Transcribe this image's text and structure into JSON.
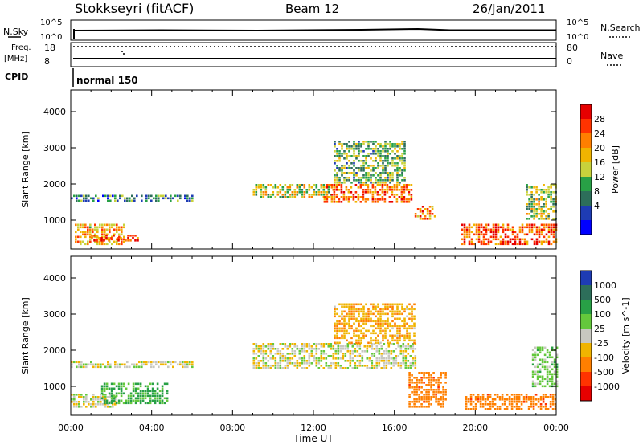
{
  "header": {
    "station": "Stokkseyri (fitACF)",
    "beam": "Beam 12",
    "date": "26/Jan/2011"
  },
  "side_labels": {
    "nsky": "N.Sky",
    "nsky_ticks": [
      "10^5",
      "10^0"
    ],
    "nsearch": "N.Search",
    "nsearch_ticks": [
      "10^5",
      "10^0"
    ],
    "freq": "Freq.",
    "freq_unit": "[MHz]",
    "freq_ticks": [
      "18",
      "8"
    ],
    "nave": "Nave",
    "nave_ticks": [
      "80",
      "0"
    ],
    "cpid": "CPID",
    "cpid_value": "normal 150"
  },
  "chart_data": [
    {
      "type": "heatmap",
      "panel": "power",
      "xlabel": "",
      "ylabel": "Slant Range [km]",
      "x_ticks": [
        "00:00",
        "04:00",
        "08:00",
        "12:00",
        "16:00",
        "20:00",
        "00:00"
      ],
      "y_ticks": [
        1000,
        2000,
        3000,
        4000
      ],
      "ylim": [
        200,
        4600
      ],
      "colorbar": {
        "label": "Power [dB]",
        "ticks": [
          "28",
          "24",
          "20",
          "16",
          "12",
          "8",
          "4"
        ],
        "colors": [
          "#e60000",
          "#ff3300",
          "#ff7f00",
          "#f0b400",
          "#c8d23c",
          "#28a046",
          "#2d6e5a",
          "#1e3cb4",
          "#0000ff"
        ]
      },
      "echo_regions": [
        {
          "t": [
            0.2,
            2.6
          ],
          "r": [
            300,
            900
          ],
          "value": 20
        },
        {
          "t": [
            1.0,
            3.3
          ],
          "r": [
            400,
            600
          ],
          "value": 26
        },
        {
          "t": [
            0.0,
            6.0
          ],
          "r": [
            1500,
            1700
          ],
          "value": 8
        },
        {
          "t": [
            9.0,
            13.0
          ],
          "r": [
            1600,
            2000
          ],
          "value": 16
        },
        {
          "t": [
            12.5,
            16.8
          ],
          "r": [
            1500,
            2000
          ],
          "value": 24
        },
        {
          "t": [
            13.0,
            16.5
          ],
          "r": [
            2000,
            3200
          ],
          "value": 12
        },
        {
          "t": [
            17.0,
            18.0
          ],
          "r": [
            1000,
            1400
          ],
          "value": 22
        },
        {
          "t": [
            19.3,
            24.0
          ],
          "r": [
            350,
            900
          ],
          "value": 25
        },
        {
          "t": [
            22.5,
            24.0
          ],
          "r": [
            1000,
            2000
          ],
          "value": 14
        }
      ]
    },
    {
      "type": "heatmap",
      "panel": "velocity",
      "xlabel": "Time UT",
      "ylabel": "Slant Range [km]",
      "x_ticks": [
        "00:00",
        "04:00",
        "08:00",
        "12:00",
        "16:00",
        "20:00",
        "00:00"
      ],
      "y_ticks": [
        1000,
        2000,
        3000,
        4000
      ],
      "ylim": [
        200,
        4600
      ],
      "colorbar": {
        "label": "Velocity [m s^-1]",
        "ticks": [
          "1000",
          "500",
          "100",
          "25",
          "-25",
          "-100",
          "-500",
          "-1000"
        ],
        "colors": [
          "#1e3cb4",
          "#2d6e5a",
          "#28a046",
          "#64c83c",
          "#c8c8c0",
          "#f0b400",
          "#ff7f00",
          "#ff3300",
          "#e60000"
        ]
      },
      "echo_regions": [
        {
          "t": [
            0.0,
            2.2
          ],
          "r": [
            400,
            800
          ],
          "value": 0
        },
        {
          "t": [
            1.5,
            4.8
          ],
          "r": [
            500,
            1100
          ],
          "value": 120
        },
        {
          "t": [
            0.0,
            6.0
          ],
          "r": [
            1500,
            1700
          ],
          "value": 0
        },
        {
          "t": [
            9.0,
            17.0
          ],
          "r": [
            1500,
            2200
          ],
          "value": 0
        },
        {
          "t": [
            13.0,
            17.0
          ],
          "r": [
            2200,
            3300
          ],
          "value": -80
        },
        {
          "t": [
            16.7,
            18.5
          ],
          "r": [
            400,
            1400
          ],
          "value": -450
        },
        {
          "t": [
            19.5,
            24.0
          ],
          "r": [
            350,
            800
          ],
          "value": -450
        },
        {
          "t": [
            22.8,
            24.0
          ],
          "r": [
            1000,
            2100
          ],
          "value": 60
        }
      ]
    }
  ]
}
